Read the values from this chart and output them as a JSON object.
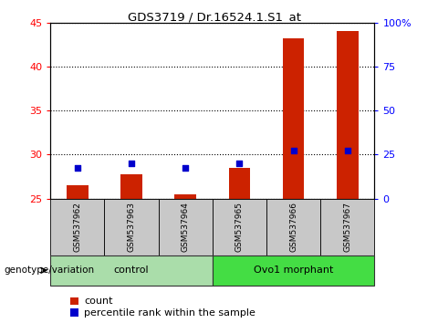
{
  "title": "GDS3719 / Dr.16524.1.S1_at",
  "samples": [
    "GSM537962",
    "GSM537963",
    "GSM537964",
    "GSM537965",
    "GSM537966",
    "GSM537967"
  ],
  "count_values": [
    26.5,
    27.8,
    25.5,
    28.5,
    43.2,
    44.0
  ],
  "percentile_values": [
    28.5,
    29.0,
    28.5,
    29.0,
    30.5,
    30.5
  ],
  "ylim_left": [
    25,
    45
  ],
  "ylim_right": [
    0,
    100
  ],
  "yticks_left": [
    25,
    30,
    35,
    40,
    45
  ],
  "yticks_right": [
    0,
    25,
    50,
    75,
    100
  ],
  "bar_color": "#cc2200",
  "dot_color": "#0000cc",
  "groups": [
    {
      "label": "control",
      "span": [
        0,
        2
      ],
      "color": "#aaddaa"
    },
    {
      "label": "Ovo1 morphant",
      "span": [
        3,
        5
      ],
      "color": "#44dd44"
    }
  ],
  "xlabel_group": "genotype/variation",
  "legend_count": "count",
  "legend_percentile": "percentile rank within the sample",
  "bar_width": 0.4,
  "tick_area_bg": "#c8c8c8",
  "group_border_color": "#333333"
}
